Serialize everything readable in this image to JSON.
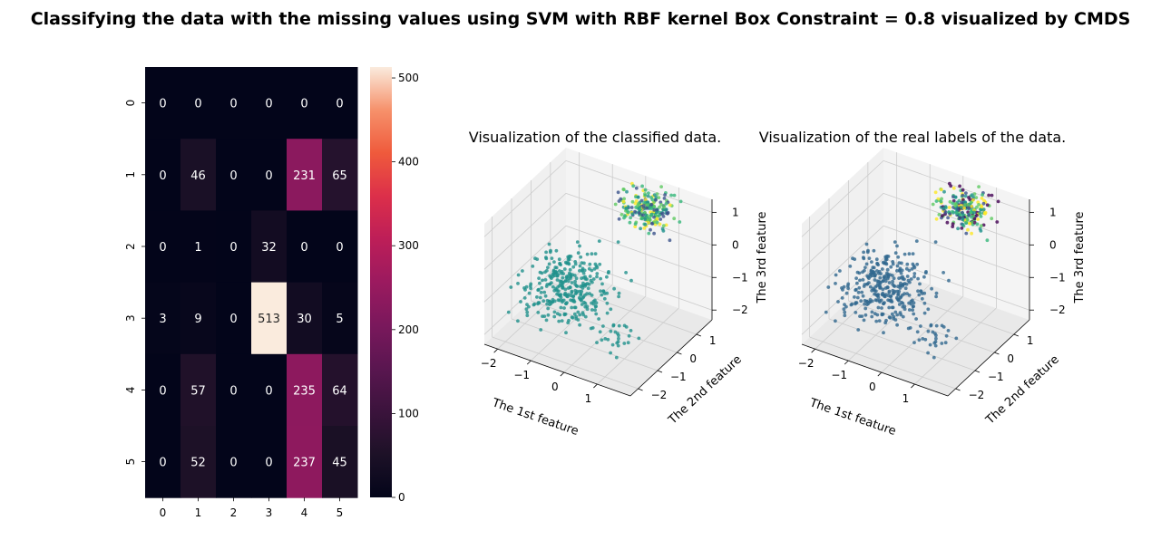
{
  "figure_title": "Classifying the data with the missing values using SVM with RBF kernel Box Constraint = 0.8 visualized by CMDS",
  "chart_data": [
    {
      "type": "heatmap",
      "title": "",
      "xlabel": "",
      "ylabel": "",
      "x_categories": [
        "0",
        "1",
        "2",
        "3",
        "4",
        "5"
      ],
      "y_categories": [
        "0",
        "1",
        "2",
        "3",
        "4",
        "5"
      ],
      "matrix": [
        [
          0,
          0,
          0,
          0,
          0,
          0
        ],
        [
          0,
          46,
          0,
          0,
          231,
          65
        ],
        [
          0,
          1,
          0,
          32,
          0,
          0
        ],
        [
          3,
          9,
          0,
          513,
          30,
          5
        ],
        [
          0,
          57,
          0,
          0,
          235,
          64
        ],
        [
          0,
          52,
          0,
          0,
          237,
          45
        ]
      ],
      "colormap": "rocket",
      "colorbar_ticks": [
        0,
        100,
        200,
        300,
        400,
        500
      ],
      "colorbar_range": [
        0,
        513
      ]
    },
    {
      "type": "scatter",
      "projection": "3d",
      "title": "Visualization of the classified data.",
      "xlabel": "The 1st feature",
      "ylabel": "The 2nd feature",
      "zlabel": "The 3rd feature",
      "xticks": [
        "−2",
        "−1",
        "0",
        "1"
      ],
      "yticks": [
        "−2",
        "−1",
        "0",
        "1"
      ],
      "zticks": [
        "−2",
        "−1",
        "0",
        "1"
      ],
      "xlim": [
        -2.4,
        2.0
      ],
      "ylim": [
        -2.4,
        1.8
      ],
      "zlim": [
        -2.3,
        1.4
      ],
      "colormap": "viridis",
      "clusters": [
        {
          "center": [
            -0.9,
            -0.7,
            -1.0
          ],
          "spread": [
            0.55,
            0.6,
            0.45
          ],
          "count": 330,
          "colors": [
            "#21918c"
          ]
        },
        {
          "center": [
            1.0,
            -1.4,
            -1.4
          ],
          "spread": [
            0.2,
            0.25,
            0.2
          ],
          "count": 25,
          "colors": [
            "#21918c"
          ]
        },
        {
          "center": [
            0.5,
            1.0,
            1.0
          ],
          "spread": [
            0.35,
            0.35,
            0.25
          ],
          "count": 230,
          "colors": [
            "#5ec962",
            "#3b528b",
            "#fde725",
            "#35b779",
            "#21918c"
          ]
        }
      ]
    },
    {
      "type": "scatter",
      "projection": "3d",
      "title": "Visualization of the real labels of the data.",
      "xlabel": "The 1st feature",
      "ylabel": "The 2nd feature",
      "zlabel": "The 3rd feature",
      "xticks": [
        "−2",
        "−1",
        "0",
        "1"
      ],
      "yticks": [
        "−2",
        "−1",
        "0",
        "1"
      ],
      "zticks": [
        "−2",
        "−1",
        "0",
        "1"
      ],
      "xlim": [
        -2.4,
        2.0
      ],
      "ylim": [
        -2.4,
        1.8
      ],
      "zlim": [
        -2.3,
        1.4
      ],
      "colormap": "viridis",
      "clusters": [
        {
          "center": [
            -0.9,
            -0.7,
            -1.0
          ],
          "spread": [
            0.55,
            0.6,
            0.45
          ],
          "count": 330,
          "colors": [
            "#31688e"
          ]
        },
        {
          "center": [
            1.0,
            -1.4,
            -1.4
          ],
          "spread": [
            0.2,
            0.25,
            0.2
          ],
          "count": 25,
          "colors": [
            "#31688e"
          ]
        },
        {
          "center": [
            0.5,
            1.0,
            1.0
          ],
          "spread": [
            0.35,
            0.35,
            0.25
          ],
          "count": 230,
          "colors": [
            "#5ec962",
            "#fde725",
            "#35b779",
            "#440154",
            "#3b528b",
            "#21918c"
          ]
        }
      ]
    }
  ]
}
